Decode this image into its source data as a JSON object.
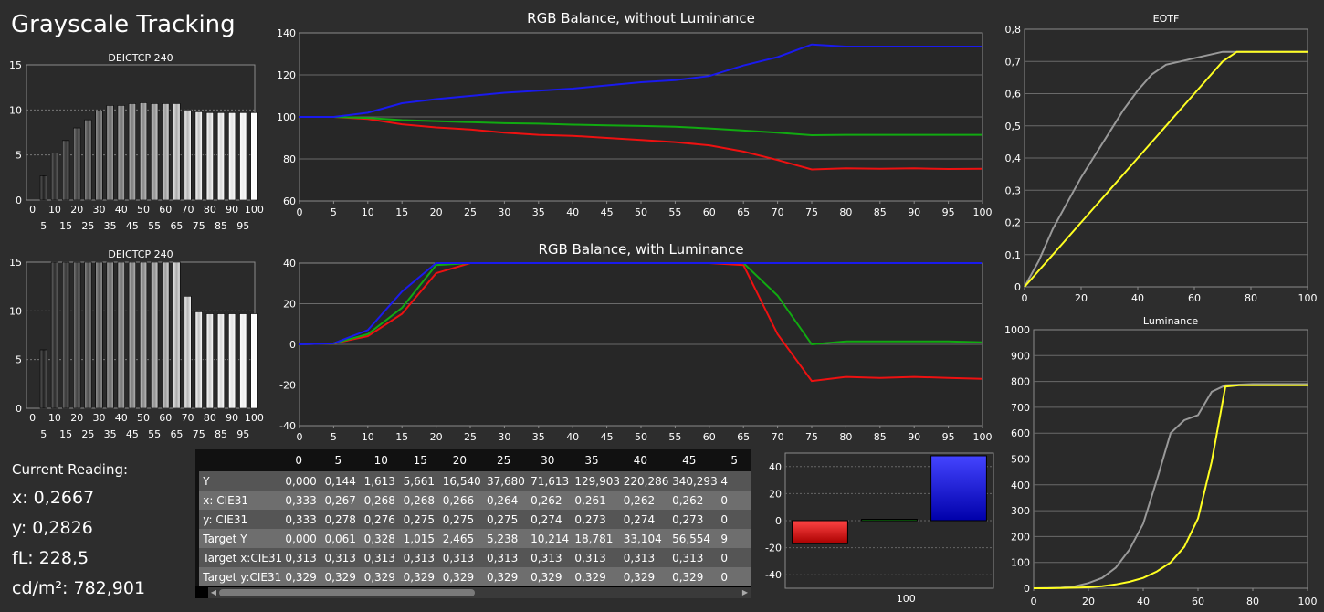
{
  "app_title": "Grayscale Tracking",
  "reading": {
    "heading": "Current Reading:",
    "x": "x: 0,2667",
    "y": "y: 0,2826",
    "fl": "fL: 228,5",
    "cd": "cd/m²: 782,901"
  },
  "colors": {
    "red": "#ee1111",
    "green": "#11aa11",
    "blue": "#1a1aee",
    "gray": "#999999",
    "yellow": "#ffff22"
  },
  "table": {
    "columns": [
      "0",
      "5",
      "10",
      "15",
      "20",
      "25",
      "30",
      "35",
      "40",
      "45",
      "5"
    ],
    "rows": [
      {
        "label": "Y",
        "values": [
          "0,000",
          "0,144",
          "1,613",
          "5,661",
          "16,540",
          "37,680",
          "71,613",
          "129,903",
          "220,286",
          "340,293",
          "4"
        ]
      },
      {
        "label": "x: CIE31",
        "values": [
          "0,333",
          "0,267",
          "0,268",
          "0,268",
          "0,266",
          "0,264",
          "0,262",
          "0,261",
          "0,262",
          "0,262",
          "0"
        ]
      },
      {
        "label": "y: CIE31",
        "values": [
          "0,333",
          "0,278",
          "0,276",
          "0,275",
          "0,275",
          "0,275",
          "0,274",
          "0,273",
          "0,274",
          "0,273",
          "0"
        ]
      },
      {
        "label": "Target Y",
        "values": [
          "0,000",
          "0,061",
          "0,328",
          "1,015",
          "2,465",
          "5,238",
          "10,214",
          "18,781",
          "33,104",
          "56,554",
          "9"
        ]
      },
      {
        "label": "Target x:CIE31",
        "values": [
          "0,313",
          "0,313",
          "0,313",
          "0,313",
          "0,313",
          "0,313",
          "0,313",
          "0,313",
          "0,313",
          "0,313",
          "0"
        ]
      },
      {
        "label": "Target y:CIE31",
        "values": [
          "0,329",
          "0,329",
          "0,329",
          "0,329",
          "0,329",
          "0,329",
          "0,329",
          "0,329",
          "0,329",
          "0,329",
          "0"
        ]
      }
    ]
  },
  "chart_data": [
    {
      "id": "de-top",
      "type": "bar",
      "title": "DEICTCP 240",
      "ylim": [
        0,
        15
      ],
      "yticks": [
        "0",
        "5",
        "10",
        "15"
      ],
      "xticks_top": [
        "0",
        "10",
        "20",
        "30",
        "40",
        "50",
        "60",
        "70",
        "80",
        "90",
        "100"
      ],
      "xticks_bottom": [
        "5",
        "15",
        "25",
        "35",
        "45",
        "55",
        "65",
        "75",
        "85",
        "95"
      ],
      "categories": [
        "0",
        "5",
        "10",
        "15",
        "20",
        "25",
        "30",
        "35",
        "40",
        "45",
        "50",
        "55",
        "60",
        "65",
        "70",
        "75",
        "80",
        "85",
        "90",
        "95",
        "100"
      ],
      "values": [
        0,
        2.7,
        5.2,
        6.6,
        8.0,
        8.9,
        9.9,
        10.5,
        10.5,
        10.7,
        10.8,
        10.7,
        10.7,
        10.7,
        10.0,
        9.8,
        9.7,
        9.7,
        9.7,
        9.7,
        9.7
      ]
    },
    {
      "id": "de-bottom",
      "type": "bar",
      "title": "DEICTCP 240",
      "ylim": [
        0,
        15
      ],
      "yticks": [
        "0",
        "5",
        "10",
        "15"
      ],
      "xticks_top": [
        "0",
        "10",
        "20",
        "30",
        "40",
        "50",
        "60",
        "70",
        "80",
        "90",
        "100"
      ],
      "xticks_bottom": [
        "5",
        "15",
        "25",
        "35",
        "45",
        "55",
        "65",
        "75",
        "85",
        "95"
      ],
      "categories": [
        "0",
        "5",
        "10",
        "15",
        "20",
        "25",
        "30",
        "35",
        "40",
        "45",
        "50",
        "55",
        "60",
        "65",
        "70",
        "75",
        "80",
        "85",
        "90",
        "95",
        "100"
      ],
      "values": [
        0,
        6.0,
        15,
        15,
        15,
        15,
        15,
        15,
        15,
        15,
        15,
        15,
        15,
        15,
        11.5,
        9.9,
        9.7,
        9.7,
        9.7,
        9.7,
        9.7
      ]
    },
    {
      "id": "rgb-without",
      "type": "line",
      "title": "RGB Balance, without Luminance",
      "xlim": [
        0,
        100
      ],
      "ylim": [
        60,
        140
      ],
      "xticks": [
        "0",
        "5",
        "10",
        "15",
        "20",
        "25",
        "30",
        "35",
        "40",
        "45",
        "50",
        "55",
        "60",
        "65",
        "70",
        "75",
        "80",
        "85",
        "90",
        "95",
        "100"
      ],
      "yticks": [
        "60",
        "80",
        "100",
        "120",
        "140"
      ],
      "x": [
        0,
        5,
        10,
        15,
        20,
        25,
        30,
        35,
        40,
        45,
        50,
        55,
        60,
        65,
        70,
        75,
        80,
        85,
        90,
        95,
        100
      ],
      "series": [
        {
          "color": "red",
          "values": [
            100,
            100,
            99,
            96.5,
            95,
            94,
            92.5,
            91.5,
            91,
            90,
            89,
            88,
            86.5,
            83.5,
            79.5,
            75,
            75.5,
            75.3,
            75.5,
            75.2,
            75.3
          ]
        },
        {
          "color": "green",
          "values": [
            100,
            100,
            99.5,
            98.5,
            98,
            97.5,
            97,
            96.8,
            96.3,
            96,
            95.7,
            95.3,
            94.5,
            93.5,
            92.5,
            91.3,
            91.5,
            91.5,
            91.5,
            91.5,
            91.5
          ]
        },
        {
          "color": "blue",
          "values": [
            100,
            100,
            102,
            106.5,
            108.5,
            110,
            111.5,
            112.5,
            113.5,
            115,
            116.5,
            117.5,
            119.5,
            124.5,
            128.5,
            134.5,
            133.5,
            133.5,
            133.5,
            133.5,
            133.5
          ]
        }
      ]
    },
    {
      "id": "rgb-with",
      "type": "line",
      "title": "RGB Balance, with Luminance",
      "xlim": [
        0,
        100
      ],
      "ylim": [
        -40,
        40
      ],
      "xticks": [
        "0",
        "5",
        "10",
        "15",
        "20",
        "25",
        "30",
        "35",
        "40",
        "45",
        "50",
        "55",
        "60",
        "65",
        "70",
        "75",
        "80",
        "85",
        "90",
        "95",
        "100"
      ],
      "yticks": [
        "-40",
        "-20",
        "0",
        "20",
        "40"
      ],
      "x": [
        0,
        5,
        10,
        15,
        20,
        25,
        30,
        35,
        40,
        45,
        50,
        55,
        60,
        65,
        70,
        75,
        80,
        85,
        90,
        95,
        100
      ],
      "series": [
        {
          "color": "red",
          "values": [
            0,
            0.5,
            4,
            15,
            35,
            40,
            40,
            40,
            40,
            40,
            40,
            40,
            40,
            39,
            5,
            -18,
            -16,
            -16.5,
            -16,
            -16.5,
            -17
          ]
        },
        {
          "color": "green",
          "values": [
            0,
            0.5,
            5,
            18,
            39,
            40,
            40,
            40,
            40,
            40,
            40,
            40,
            40,
            40,
            24,
            0,
            1.5,
            1.5,
            1.5,
            1.5,
            1
          ]
        },
        {
          "color": "blue",
          "values": [
            0,
            0.5,
            7,
            26,
            40,
            40,
            40,
            40,
            40,
            40,
            40,
            40,
            40,
            40,
            40,
            40,
            40,
            40,
            40,
            40,
            40
          ]
        }
      ]
    },
    {
      "id": "eotf",
      "type": "line",
      "title": "EOTF",
      "xlim": [
        0,
        100
      ],
      "ylim": [
        0,
        0.8
      ],
      "xticks": [
        "0",
        "20",
        "40",
        "60",
        "80",
        "100"
      ],
      "yticks": [
        "0",
        "0,1",
        "0,2",
        "0,3",
        "0,4",
        "0,5",
        "0,6",
        "0,7",
        "0,8"
      ],
      "x": [
        0,
        5,
        10,
        15,
        20,
        25,
        30,
        35,
        40,
        45,
        50,
        55,
        60,
        65,
        70,
        75,
        80,
        85,
        90,
        95,
        100
      ],
      "series": [
        {
          "color": "gray",
          "values": [
            0,
            0.08,
            0.18,
            0.26,
            0.34,
            0.41,
            0.48,
            0.55,
            0.61,
            0.66,
            0.69,
            0.7,
            0.71,
            0.72,
            0.73,
            0.73,
            0.73,
            0.73,
            0.73,
            0.73,
            0.73
          ]
        },
        {
          "color": "yellow",
          "values": [
            0,
            0.05,
            0.1,
            0.15,
            0.2,
            0.25,
            0.3,
            0.35,
            0.4,
            0.45,
            0.5,
            0.55,
            0.6,
            0.65,
            0.7,
            0.73,
            0.73,
            0.73,
            0.73,
            0.73,
            0.73
          ]
        }
      ]
    },
    {
      "id": "luminance",
      "type": "line",
      "title": "Luminance",
      "xlim": [
        0,
        100
      ],
      "ylim": [
        0,
        1000
      ],
      "xticks": [
        "0",
        "20",
        "40",
        "60",
        "80",
        "100"
      ],
      "yticks": [
        "0",
        "100",
        "200",
        "300",
        "400",
        "500",
        "600",
        "700",
        "800",
        "900",
        "1000"
      ],
      "x": [
        0,
        5,
        10,
        15,
        20,
        25,
        30,
        35,
        40,
        45,
        50,
        55,
        60,
        65,
        70,
        75,
        80,
        85,
        90,
        95,
        100
      ],
      "series": [
        {
          "color": "gray",
          "values": [
            0,
            1,
            2,
            7,
            20,
            40,
            80,
            150,
            250,
            420,
            600,
            650,
            670,
            760,
            785,
            788,
            790,
            790,
            790,
            790,
            790
          ]
        },
        {
          "color": "yellow",
          "values": [
            0,
            0,
            1,
            2,
            4,
            8,
            15,
            25,
            40,
            65,
            100,
            160,
            270,
            490,
            780,
            785,
            785,
            785,
            785,
            785,
            785
          ]
        }
      ]
    },
    {
      "id": "current-rgb",
      "type": "bar",
      "ylim": [
        -50,
        50
      ],
      "yticks": [
        "-40",
        "-20",
        "0",
        "20",
        "40"
      ],
      "xlabel_tick": "100",
      "categories": [
        "red",
        "green",
        "blue"
      ],
      "values": [
        -17,
        1,
        48
      ]
    }
  ]
}
